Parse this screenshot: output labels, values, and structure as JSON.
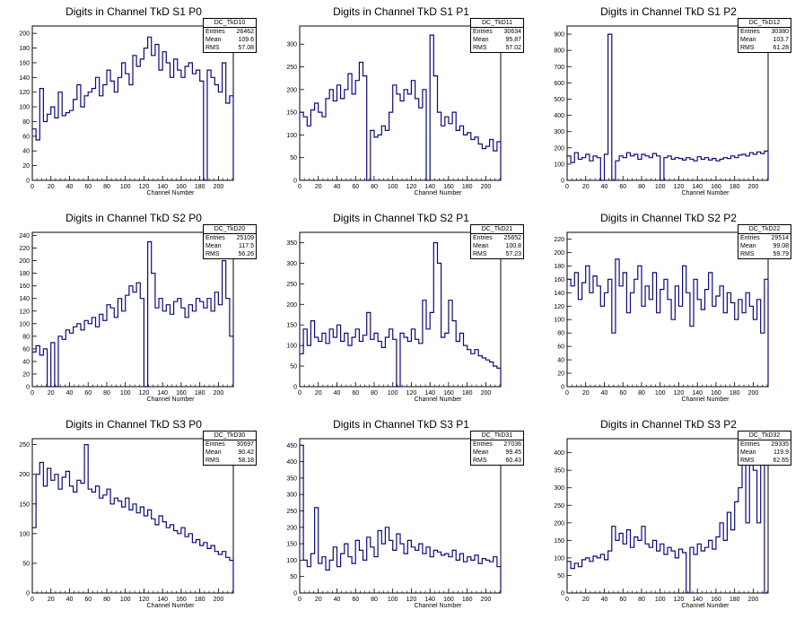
{
  "chart_data": [
    {
      "type": "histogram",
      "title": "Digits in Channel TkD S1 P0",
      "xlabel": "Channel Number",
      "ylabel": "",
      "xlim": [
        0,
        216
      ],
      "ylim": [
        0,
        210
      ],
      "yticks": [
        0,
        20,
        40,
        60,
        80,
        100,
        120,
        140,
        160,
        180,
        200
      ],
      "stats": {
        "name": "DC_TkD10",
        "entries": "26462",
        "mean": "109.6",
        "rms": "57.08"
      },
      "x": [
        0,
        4,
        8,
        12,
        16,
        20,
        24,
        28,
        32,
        36,
        40,
        44,
        48,
        52,
        56,
        60,
        64,
        68,
        72,
        76,
        80,
        84,
        88,
        92,
        96,
        100,
        104,
        108,
        112,
        116,
        120,
        124,
        128,
        132,
        136,
        140,
        144,
        148,
        152,
        156,
        160,
        164,
        168,
        172,
        176,
        180,
        184,
        188,
        192,
        196,
        200,
        204,
        208,
        212,
        216
      ],
      "values": [
        70,
        55,
        125,
        80,
        90,
        100,
        85,
        120,
        88,
        92,
        95,
        110,
        130,
        100,
        115,
        120,
        125,
        140,
        115,
        130,
        150,
        135,
        120,
        140,
        160,
        145,
        130,
        170,
        155,
        165,
        180,
        195,
        170,
        185,
        150,
        175,
        160,
        140,
        165,
        150,
        140,
        155,
        160,
        145,
        150,
        135,
        0,
        150,
        140,
        130,
        120,
        160,
        105,
        115,
        0
      ]
    },
    {
      "type": "histogram",
      "title": "Digits in Channel TkD S1 P1",
      "xlabel": "Channel Number",
      "ylabel": "",
      "xlim": [
        0,
        216
      ],
      "ylim": [
        0,
        340
      ],
      "yticks": [
        0,
        50,
        100,
        150,
        200,
        250,
        300
      ],
      "stats": {
        "name": "DC_TkD11",
        "entries": "30634",
        "mean": "95.87",
        "rms": "57.02"
      },
      "x": [
        0,
        4,
        8,
        12,
        16,
        20,
        24,
        28,
        32,
        36,
        40,
        44,
        48,
        52,
        56,
        60,
        64,
        68,
        72,
        76,
        80,
        84,
        88,
        92,
        96,
        100,
        104,
        108,
        112,
        116,
        120,
        124,
        128,
        132,
        136,
        140,
        144,
        148,
        152,
        156,
        160,
        164,
        168,
        172,
        176,
        180,
        184,
        188,
        192,
        196,
        200,
        204,
        208,
        212,
        216
      ],
      "values": [
        150,
        140,
        120,
        155,
        170,
        150,
        140,
        180,
        200,
        175,
        210,
        180,
        200,
        235,
        190,
        220,
        260,
        230,
        0,
        110,
        95,
        100,
        120,
        110,
        150,
        210,
        190,
        175,
        200,
        190,
        220,
        180,
        160,
        200,
        0,
        320,
        230,
        150,
        120,
        140,
        125,
        150,
        110,
        120,
        100,
        105,
        90,
        95,
        80,
        70,
        75,
        90,
        65,
        85,
        0
      ]
    },
    {
      "type": "histogram",
      "title": "Digits in Channel TkD S1 P2",
      "xlabel": "Channel Number",
      "ylabel": "",
      "xlim": [
        0,
        216
      ],
      "ylim": [
        0,
        950
      ],
      "yticks": [
        0,
        100,
        200,
        300,
        400,
        500,
        600,
        700,
        800,
        900
      ],
      "stats": {
        "name": "DC_TkD12",
        "entries": "30380",
        "mean": "103.7",
        "rms": "61.28"
      },
      "x": [
        0,
        4,
        8,
        12,
        16,
        20,
        24,
        28,
        32,
        36,
        40,
        44,
        48,
        52,
        56,
        60,
        64,
        68,
        72,
        76,
        80,
        84,
        88,
        92,
        96,
        100,
        104,
        108,
        112,
        116,
        120,
        124,
        128,
        132,
        136,
        140,
        144,
        148,
        152,
        156,
        160,
        164,
        168,
        172,
        176,
        180,
        184,
        188,
        192,
        196,
        200,
        204,
        208,
        212,
        216
      ],
      "values": [
        150,
        110,
        170,
        130,
        140,
        160,
        120,
        150,
        140,
        0,
        160,
        900,
        0,
        120,
        150,
        140,
        170,
        150,
        160,
        130,
        160,
        150,
        140,
        165,
        150,
        0,
        140,
        150,
        130,
        140,
        135,
        125,
        140,
        130,
        120,
        145,
        130,
        140,
        125,
        135,
        120,
        130,
        140,
        135,
        150,
        140,
        155,
        160,
        150,
        170,
        160,
        175,
        165,
        180,
        0
      ]
    },
    {
      "type": "histogram",
      "title": "Digits in Channel TkD S2 P0",
      "xlabel": "Channel Number",
      "ylabel": "",
      "xlim": [
        0,
        216
      ],
      "ylim": [
        0,
        245
      ],
      "yticks": [
        0,
        20,
        40,
        60,
        80,
        100,
        120,
        140,
        160,
        180,
        200,
        220,
        240
      ],
      "stats": {
        "name": "DC_TkD20",
        "entries": "25109",
        "mean": "117.5",
        "rms": "56.26"
      },
      "x": [
        0,
        4,
        8,
        12,
        16,
        20,
        24,
        28,
        32,
        36,
        40,
        44,
        48,
        52,
        56,
        60,
        64,
        68,
        72,
        76,
        80,
        84,
        88,
        92,
        96,
        100,
        104,
        108,
        112,
        116,
        120,
        124,
        128,
        132,
        136,
        140,
        144,
        148,
        152,
        156,
        160,
        164,
        168,
        172,
        176,
        180,
        184,
        188,
        192,
        196,
        200,
        204,
        208,
        212,
        216
      ],
      "values": [
        55,
        65,
        50,
        60,
        0,
        70,
        0,
        80,
        75,
        90,
        85,
        95,
        100,
        90,
        105,
        100,
        110,
        95,
        115,
        105,
        130,
        125,
        110,
        140,
        120,
        145,
        160,
        150,
        165,
        140,
        0,
        230,
        180,
        125,
        140,
        120,
        130,
        115,
        135,
        140,
        125,
        110,
        130,
        120,
        140,
        135,
        125,
        140,
        120,
        150,
        130,
        200,
        140,
        80,
        0
      ]
    },
    {
      "type": "histogram",
      "title": "Digits in Channel TkD S2 P1",
      "xlabel": "Channel Number",
      "ylabel": "",
      "xlim": [
        0,
        216
      ],
      "ylim": [
        0,
        375
      ],
      "yticks": [
        0,
        50,
        100,
        150,
        200,
        250,
        300,
        350
      ],
      "stats": {
        "name": "DC_TkD21",
        "entries": "25652",
        "mean": "100.8",
        "rms": "57.23"
      },
      "x": [
        0,
        4,
        8,
        12,
        16,
        20,
        24,
        28,
        32,
        36,
        40,
        44,
        48,
        52,
        56,
        60,
        64,
        68,
        72,
        76,
        80,
        84,
        88,
        92,
        96,
        100,
        104,
        108,
        112,
        116,
        120,
        124,
        128,
        132,
        136,
        140,
        144,
        148,
        152,
        156,
        160,
        164,
        168,
        172,
        176,
        180,
        184,
        188,
        192,
        196,
        200,
        204,
        208,
        212,
        216
      ],
      "values": [
        80,
        140,
        100,
        160,
        120,
        110,
        130,
        105,
        140,
        120,
        150,
        110,
        130,
        100,
        120,
        140,
        110,
        125,
        180,
        115,
        130,
        110,
        95,
        120,
        140,
        115,
        0,
        130,
        120,
        110,
        140,
        115,
        105,
        210,
        140,
        180,
        350,
        300,
        120,
        130,
        210,
        160,
        110,
        130,
        100,
        90,
        80,
        90,
        75,
        70,
        65,
        60,
        50,
        45,
        0
      ]
    },
    {
      "type": "histogram",
      "title": "Digits in Channel TkD S2 P2",
      "xlabel": "Channel Number",
      "ylabel": "",
      "xlim": [
        0,
        216
      ],
      "ylim": [
        0,
        230
      ],
      "yticks": [
        0,
        20,
        40,
        60,
        80,
        100,
        120,
        140,
        160,
        180,
        200,
        220
      ],
      "stats": {
        "name": "DC_TkD22",
        "entries": "29514",
        "mean": "99.08",
        "rms": "59.79"
      },
      "x": [
        0,
        4,
        8,
        12,
        16,
        20,
        24,
        28,
        32,
        36,
        40,
        44,
        48,
        52,
        56,
        60,
        64,
        68,
        72,
        76,
        80,
        84,
        88,
        92,
        96,
        100,
        104,
        108,
        112,
        116,
        120,
        124,
        128,
        132,
        136,
        140,
        144,
        148,
        152,
        156,
        160,
        164,
        168,
        172,
        176,
        180,
        184,
        188,
        192,
        196,
        200,
        204,
        208,
        212,
        216
      ],
      "values": [
        160,
        150,
        170,
        130,
        155,
        180,
        140,
        165,
        150,
        120,
        140,
        160,
        80,
        190,
        150,
        170,
        110,
        140,
        160,
        180,
        120,
        150,
        130,
        170,
        110,
        145,
        160,
        130,
        100,
        150,
        120,
        180,
        140,
        90,
        160,
        130,
        115,
        145,
        170,
        120,
        135,
        150,
        110,
        140,
        125,
        100,
        130,
        110,
        140,
        120,
        100,
        130,
        80,
        160,
        0
      ]
    },
    {
      "type": "histogram",
      "title": "Digits in Channel TkD S3 P0",
      "xlabel": "Channel Number",
      "ylabel": "",
      "xlim": [
        0,
        216
      ],
      "ylim": [
        0,
        260
      ],
      "yticks": [
        0,
        50,
        100,
        150,
        200,
        250
      ],
      "stats": {
        "name": "DC_TkD30",
        "entries": "30697",
        "mean": "90.42",
        "rms": "58.18"
      },
      "x": [
        0,
        4,
        8,
        12,
        16,
        20,
        24,
        28,
        32,
        36,
        40,
        44,
        48,
        52,
        56,
        60,
        64,
        68,
        72,
        76,
        80,
        84,
        88,
        92,
        96,
        100,
        104,
        108,
        112,
        116,
        120,
        124,
        128,
        132,
        136,
        140,
        144,
        148,
        152,
        156,
        160,
        164,
        168,
        172,
        176,
        180,
        184,
        188,
        192,
        196,
        200,
        204,
        208,
        212,
        216
      ],
      "values": [
        110,
        200,
        220,
        180,
        210,
        190,
        200,
        175,
        195,
        205,
        180,
        170,
        190,
        185,
        250,
        175,
        170,
        180,
        160,
        165,
        175,
        150,
        160,
        155,
        145,
        160,
        140,
        150,
        135,
        145,
        130,
        140,
        125,
        115,
        130,
        120,
        110,
        115,
        105,
        100,
        110,
        95,
        100,
        85,
        90,
        80,
        85,
        75,
        80,
        70,
        65,
        70,
        60,
        55,
        0
      ]
    },
    {
      "type": "histogram",
      "title": "Digits in Channel TkD S3 P1",
      "xlabel": "Channel Number",
      "ylabel": "",
      "xlim": [
        0,
        216
      ],
      "ylim": [
        0,
        470
      ],
      "yticks": [
        0,
        50,
        100,
        150,
        200,
        250,
        300,
        350,
        400,
        450
      ],
      "stats": {
        "name": "DC_TkD31",
        "entries": "27036",
        "mean": "99.45",
        "rms": "60.43"
      },
      "x": [
        0,
        4,
        8,
        12,
        16,
        20,
        24,
        28,
        32,
        36,
        40,
        44,
        48,
        52,
        56,
        60,
        64,
        68,
        72,
        76,
        80,
        84,
        88,
        92,
        96,
        100,
        104,
        108,
        112,
        116,
        120,
        124,
        128,
        132,
        136,
        140,
        144,
        148,
        152,
        156,
        160,
        164,
        168,
        172,
        176,
        180,
        184,
        188,
        192,
        196,
        200,
        204,
        208,
        212,
        216
      ],
      "values": [
        450,
        100,
        80,
        120,
        260,
        90,
        110,
        70,
        100,
        140,
        80,
        120,
        150,
        110,
        90,
        160,
        130,
        100,
        170,
        140,
        110,
        190,
        150,
        200,
        160,
        130,
        180,
        150,
        120,
        160,
        140,
        130,
        150,
        120,
        140,
        110,
        130,
        125,
        115,
        120,
        110,
        130,
        100,
        120,
        95,
        110,
        100,
        115,
        90,
        105,
        100,
        95,
        110,
        80,
        0
      ]
    },
    {
      "type": "histogram",
      "title": "Digits in Channel TkD S3 P2",
      "xlabel": "Channel Number",
      "ylabel": "",
      "xlim": [
        0,
        216
      ],
      "ylim": [
        0,
        440
      ],
      "yticks": [
        0,
        50,
        100,
        150,
        200,
        250,
        300,
        350,
        400
      ],
      "stats": {
        "name": "DC_TkD32",
        "entries": "29335",
        "mean": "119.9",
        "rms": "62.65"
      },
      "x": [
        0,
        4,
        8,
        12,
        16,
        20,
        24,
        28,
        32,
        36,
        40,
        44,
        48,
        52,
        56,
        60,
        64,
        68,
        72,
        76,
        80,
        84,
        88,
        92,
        96,
        100,
        104,
        108,
        112,
        116,
        120,
        124,
        128,
        132,
        136,
        140,
        144,
        148,
        152,
        156,
        160,
        164,
        168,
        172,
        176,
        180,
        184,
        188,
        192,
        196,
        200,
        204,
        208,
        212,
        216
      ],
      "values": [
        90,
        70,
        85,
        75,
        95,
        100,
        90,
        105,
        100,
        110,
        95,
        120,
        190,
        150,
        170,
        140,
        180,
        130,
        160,
        150,
        190,
        140,
        130,
        150,
        120,
        140,
        110,
        130,
        120,
        100,
        125,
        115,
        0,
        130,
        110,
        140,
        120,
        130,
        150,
        125,
        160,
        200,
        150,
        230,
        180,
        260,
        300,
        380,
        200,
        420,
        350,
        200,
        390,
        0,
        0
      ]
    }
  ],
  "stats_labels": {
    "entries": "Entries",
    "mean": "Mean",
    "rms": "RMS"
  }
}
